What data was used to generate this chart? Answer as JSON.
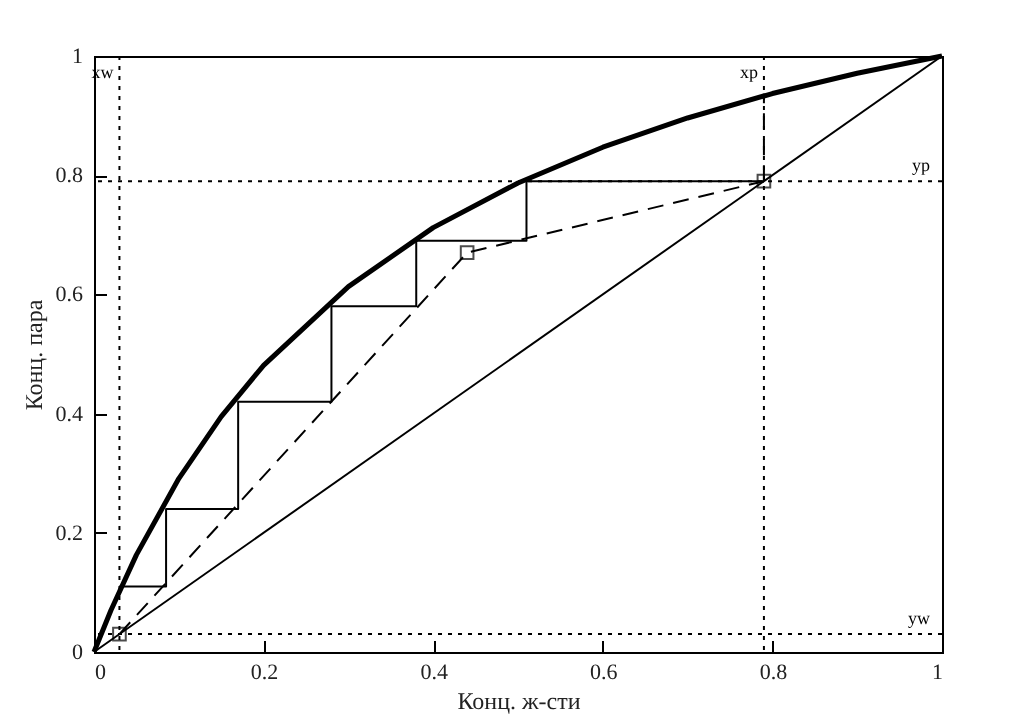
{
  "chart_data": {
    "type": "line",
    "xlabel": "Конц. ж-сти",
    "ylabel": "Конц. пара",
    "xlim": [
      0,
      1
    ],
    "ylim": [
      0,
      1
    ],
    "xticks": [
      0,
      0.2,
      0.4,
      0.6,
      0.8,
      1
    ],
    "yticks": [
      0,
      0.2,
      0.4,
      0.6,
      0.8,
      1
    ],
    "grid": false,
    "legend": false,
    "series": [
      {
        "type": "line",
        "color": "#000000",
        "line_style": "solid",
        "x": [
          0,
          0.02,
          0.05,
          0.1,
          0.15,
          0.2,
          0.3,
          0.4,
          0.5,
          0.6,
          0.7,
          0.8,
          0.9,
          1
        ],
        "values": [
          0,
          0.07,
          0.163,
          0.291,
          0.395,
          0.481,
          0.613,
          0.712,
          0.787,
          0.847,
          0.896,
          0.937,
          0.971,
          1
        ]
      },
      {
        "type": "line",
        "color": "#000000",
        "line_style": "solid",
        "x": [
          0,
          1
        ],
        "values": [
          0,
          1
        ]
      },
      {
        "type": "line",
        "color": "#000000",
        "line_style": "dashed",
        "x": [
          0.03,
          0.44,
          0.79
        ],
        "values": [
          0.03,
          0.67,
          0.79
        ]
      },
      {
        "type": "line",
        "color": "#000000",
        "line_style": "dashed",
        "x": [
          0.79,
          0.79
        ],
        "values": [
          0.79,
          0.937
        ]
      },
      {
        "type": "line",
        "color": "#000000",
        "line_style": "solid",
        "x": [
          0.79,
          0.51,
          0.51,
          0.38,
          0.38,
          0.28,
          0.28,
          0.17,
          0.17,
          0.085,
          0.085,
          0.03
        ],
        "values": [
          0.79,
          0.79,
          0.69,
          0.69,
          0.58,
          0.58,
          0.42,
          0.42,
          0.24,
          0.24,
          0.11,
          0.11
        ]
      },
      {
        "type": "scatter",
        "color": "#000000",
        "marker": "square",
        "x": [
          0.03,
          0.44,
          0.79
        ],
        "values": [
          0.03,
          0.67,
          0.79
        ]
      }
    ],
    "ref_lines": [
      {
        "axis": "x",
        "value": 0.03,
        "label": "xw",
        "line_style": "dotted",
        "color": "#000000"
      },
      {
        "axis": "x",
        "value": 0.79,
        "label": "xp",
        "line_style": "dotted",
        "color": "#000000"
      },
      {
        "axis": "y",
        "value": 0.79,
        "label": "yp",
        "line_style": "dotted",
        "color": "#000000"
      },
      {
        "axis": "y",
        "value": 0.03,
        "label": "yw",
        "line_style": "dotted",
        "color": "#000000"
      }
    ]
  }
}
